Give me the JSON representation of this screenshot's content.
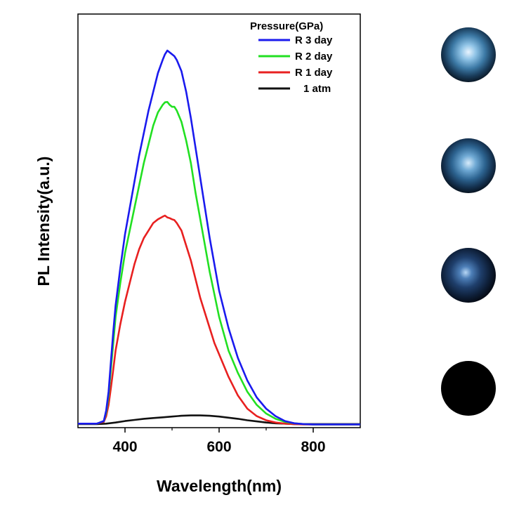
{
  "chart_data": {
    "type": "line",
    "xlabel": "Wavelength(nm)",
    "ylabel": "PL Intensity(a.u.)",
    "xlim": [
      300,
      900
    ],
    "ylim": [
      0,
      1.0
    ],
    "x_ticks": [
      400,
      600,
      800
    ],
    "y_ticks_labeled": false,
    "legend": {
      "title": "Pressure(GPa)",
      "placement": "top-right"
    },
    "series": [
      {
        "name": "R 3 day",
        "color": "#1a1aee",
        "x": [
          300,
          340,
          355,
          360,
          365,
          370,
          375,
          380,
          390,
          400,
          410,
          420,
          430,
          440,
          450,
          460,
          470,
          480,
          485,
          490,
          495,
          500,
          505,
          510,
          520,
          530,
          540,
          550,
          560,
          570,
          580,
          590,
          600,
          620,
          640,
          660,
          680,
          700,
          720,
          740,
          760,
          780,
          800,
          850,
          900
        ],
        "y": [
          0.005,
          0.005,
          0.012,
          0.04,
          0.09,
          0.17,
          0.25,
          0.32,
          0.42,
          0.51,
          0.58,
          0.65,
          0.72,
          0.78,
          0.84,
          0.89,
          0.94,
          0.975,
          0.99,
          1.0,
          0.995,
          0.99,
          0.985,
          0.975,
          0.945,
          0.89,
          0.82,
          0.74,
          0.66,
          0.58,
          0.5,
          0.43,
          0.36,
          0.26,
          0.18,
          0.12,
          0.075,
          0.045,
          0.025,
          0.012,
          0.006,
          0.004,
          0.003,
          0.003,
          0.003
        ]
      },
      {
        "name": "R 2 day",
        "color": "#22e022",
        "x": [
          300,
          340,
          355,
          360,
          365,
          370,
          375,
          380,
          390,
          400,
          410,
          420,
          430,
          440,
          450,
          460,
          470,
          480,
          485,
          490,
          495,
          500,
          505,
          510,
          520,
          530,
          540,
          550,
          560,
          570,
          580,
          590,
          600,
          620,
          640,
          660,
          680,
          700,
          720,
          740,
          760,
          780,
          800,
          850,
          900
        ],
        "y": [
          0.005,
          0.005,
          0.012,
          0.035,
          0.08,
          0.15,
          0.22,
          0.29,
          0.38,
          0.46,
          0.52,
          0.58,
          0.64,
          0.7,
          0.75,
          0.8,
          0.835,
          0.855,
          0.862,
          0.863,
          0.855,
          0.85,
          0.85,
          0.84,
          0.81,
          0.76,
          0.7,
          0.62,
          0.55,
          0.48,
          0.41,
          0.35,
          0.29,
          0.2,
          0.14,
          0.09,
          0.055,
          0.032,
          0.018,
          0.01,
          0.006,
          0.004,
          0.003,
          0.003,
          0.003
        ]
      },
      {
        "name": "R 1 day",
        "color": "#e82020",
        "x": [
          300,
          340,
          355,
          360,
          365,
          370,
          375,
          380,
          390,
          400,
          410,
          420,
          430,
          440,
          450,
          460,
          470,
          480,
          485,
          490,
          495,
          500,
          505,
          510,
          520,
          530,
          540,
          550,
          560,
          570,
          580,
          590,
          600,
          620,
          640,
          660,
          680,
          700,
          720,
          740,
          760,
          780,
          800,
          850,
          900
        ],
        "y": [
          0.005,
          0.005,
          0.01,
          0.025,
          0.055,
          0.1,
          0.15,
          0.2,
          0.27,
          0.33,
          0.38,
          0.43,
          0.47,
          0.5,
          0.52,
          0.54,
          0.55,
          0.557,
          0.56,
          0.555,
          0.553,
          0.55,
          0.548,
          0.54,
          0.52,
          0.48,
          0.44,
          0.39,
          0.34,
          0.3,
          0.26,
          0.22,
          0.19,
          0.13,
          0.08,
          0.045,
          0.025,
          0.014,
          0.008,
          0.005,
          0.004,
          0.003,
          0.003,
          0.003,
          0.003
        ]
      },
      {
        "name": "1 atm",
        "color": "#111111",
        "x": [
          300,
          340,
          360,
          380,
          400,
          420,
          440,
          460,
          480,
          500,
          520,
          540,
          560,
          580,
          600,
          620,
          640,
          660,
          680,
          700,
          720,
          740,
          760,
          780,
          800,
          850,
          900
        ],
        "y": [
          0.004,
          0.004,
          0.005,
          0.008,
          0.012,
          0.015,
          0.018,
          0.02,
          0.022,
          0.024,
          0.026,
          0.027,
          0.027,
          0.026,
          0.024,
          0.021,
          0.018,
          0.014,
          0.011,
          0.008,
          0.006,
          0.005,
          0.004,
          0.004,
          0.004,
          0.004,
          0.004
        ]
      }
    ]
  },
  "photos": [
    {
      "name": "R 3 day",
      "brightness": 0.85
    },
    {
      "name": "R 2 day",
      "brightness": 0.75
    },
    {
      "name": "R 1 day",
      "brightness": 0.5
    },
    {
      "name": "1 atm",
      "brightness": 0.0
    }
  ]
}
